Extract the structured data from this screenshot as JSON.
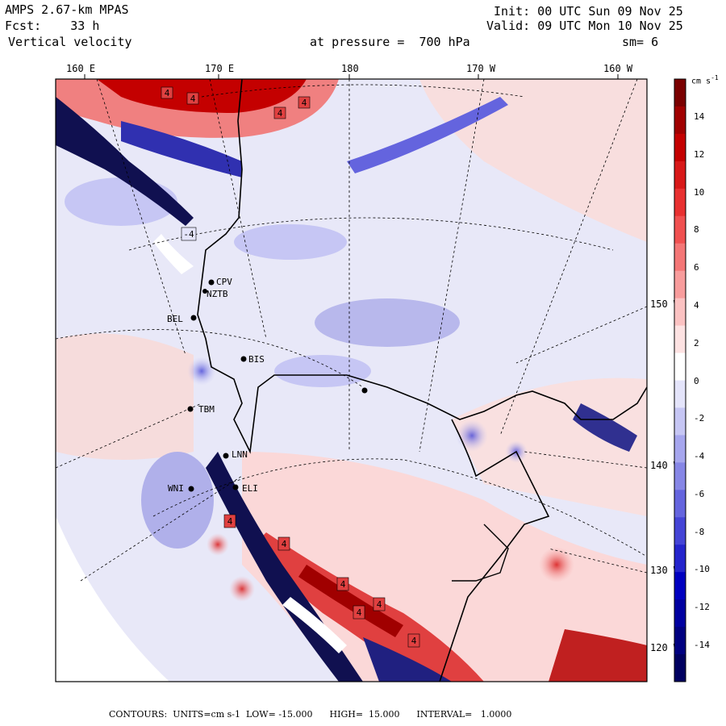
{
  "header": {
    "model": "AMPS 2.67-km MPAS",
    "forecast_label": "Fcst:",
    "forecast_hours": "33 h",
    "field": "Vertical velocity",
    "init": "Init: 00 UTC Sun 09 Nov 25",
    "valid": "Valid: 09 UTC Mon 10 Nov 25",
    "level": "at pressure =  700 hPa",
    "smoothing": "sm= 6"
  },
  "map": {
    "lon_labels": [
      "160 E",
      "170 E",
      "180",
      "170 W",
      "160 W"
    ],
    "lat_labels": [
      "150 W",
      "140 W",
      "130 W",
      "120 W"
    ],
    "stations": [
      "CPV",
      "NZTB",
      "BEL",
      "BIS",
      "TBM",
      "LNN",
      "WNI",
      "ELI"
    ],
    "contour_labels": [
      "4",
      "4",
      "4",
      "4",
      "-4",
      "4",
      "4",
      "4",
      "4",
      "4",
      "4"
    ],
    "colors": {
      "positive_strong": "#8b0000",
      "positive_mid": "#e02020",
      "positive_light": "#f4b8b8",
      "neutral": "#ffffff",
      "negative_light": "#c8c8f0",
      "negative_mid": "#4040e0",
      "negative_strong": "#00006e"
    }
  },
  "colorbar": {
    "units": "cm s",
    "units_exp": "-1",
    "ticks": [
      "14",
      "12",
      "10",
      "8",
      "6",
      "4",
      "2",
      "0",
      "-2",
      "-4",
      "-6",
      "-8",
      "-10",
      "-12",
      "-14"
    ],
    "colors": [
      "#7a0000",
      "#a00000",
      "#c40000",
      "#d81818",
      "#e83030",
      "#f05050",
      "#f47676",
      "#f89c9c",
      "#fbc2c2",
      "#fde2e2",
      "#ffffff",
      "#e4e4fa",
      "#c6c6f4",
      "#a6a6ee",
      "#8686e6",
      "#6464de",
      "#4444d6",
      "#2424cc",
      "#0000c0",
      "#0000a0",
      "#000080",
      "#000060"
    ]
  },
  "footer": {
    "text": "CONTOURS:  UNITS=cm s-1  LOW= -15.000      HIGH=  15.000      INTERVAL=   1.0000"
  }
}
